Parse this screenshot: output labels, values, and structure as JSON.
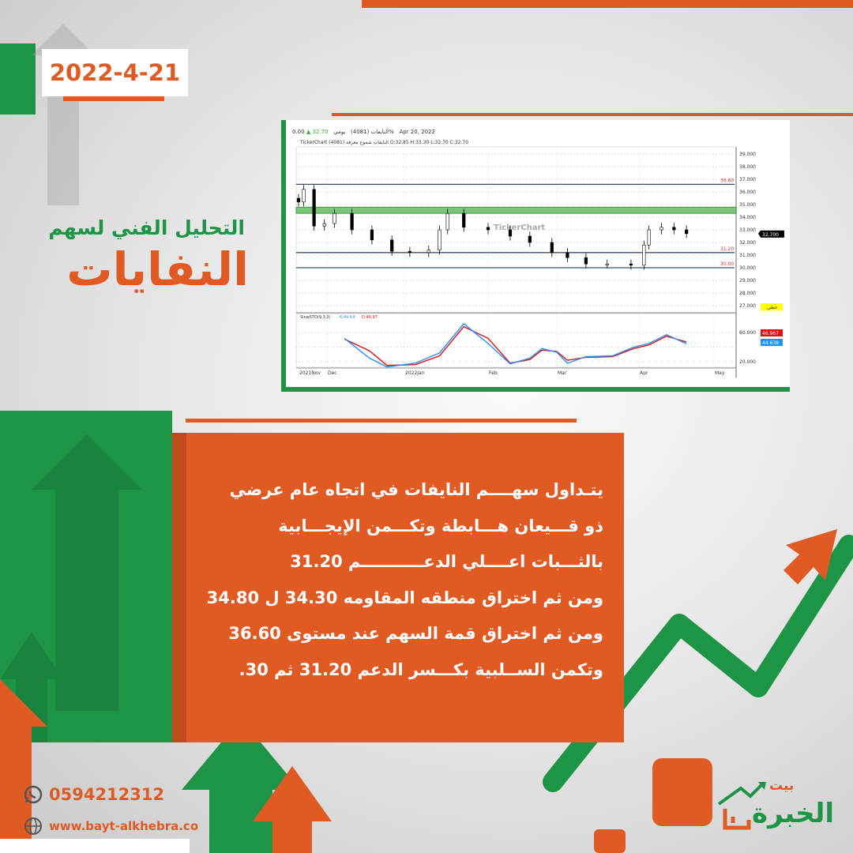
{
  "date": "2022-4-21",
  "title": {
    "small": "التحليل الفني لسهم",
    "big": "النفايات"
  },
  "chart_header": {
    "name": "النايفات (4081)",
    "market": "يومي",
    "price": "32.70",
    "change": "0.00%",
    "date": "Apr 20, 2022",
    "ohlc": "TickerChart النايفات شموع معرفة (4081) O:32.85 H:33.30 L:32.70 C:32.70",
    "watermark": "TickerChart",
    "last_price_label": "32.700",
    "yellow_label": "خطي",
    "stoch_label": "SlowSTO(9,3,3)",
    "k_label": "K:44.64",
    "d_label": "D:46.97",
    "k_value": "44.638",
    "d_value": "46.967"
  },
  "chart_data": {
    "type": "candlestick",
    "title": "",
    "y_ticks": [
      "39.000",
      "38.000",
      "37.000",
      "36.000",
      "35.000",
      "34.000",
      "33.000",
      "32.000",
      "31.000",
      "30.000",
      "29.000",
      "28.000",
      "27.000"
    ],
    "ylim": [
      27,
      39
    ],
    "x_ticks": [
      "2021Nov",
      "Dec",
      "2022Jan",
      "Feb",
      "Mar",
      "Apr",
      "May"
    ],
    "levels": [
      {
        "value": 36.6,
        "label": "36.60"
      },
      {
        "value": 31.2,
        "label": "31.20"
      },
      {
        "value": 30.0,
        "label": "30.00"
      }
    ],
    "resistance_zone": [
      34.3,
      34.8
    ],
    "color_zone": "#7cc47a",
    "closes": [
      {
        "date": "2021-11-20",
        "close": 35.2
      },
      {
        "date": "2021-11-22",
        "close": 36.2
      },
      {
        "date": "2021-11-26",
        "close": 33.3
      },
      {
        "date": "2021-11-30",
        "close": 33.5
      },
      {
        "date": "2021-12-04",
        "close": 34.3
      },
      {
        "date": "2021-12-11",
        "close": 33.0
      },
      {
        "date": "2021-12-19",
        "close": 32.2
      },
      {
        "date": "2021-12-27",
        "close": 31.3
      },
      {
        "date": "2022-01-03",
        "close": 31.2
      },
      {
        "date": "2022-01-10",
        "close": 31.4
      },
      {
        "date": "2022-01-14",
        "close": 33.0
      },
      {
        "date": "2022-01-17",
        "close": 34.3
      },
      {
        "date": "2022-01-23",
        "close": 33.2
      },
      {
        "date": "2022-02-01",
        "close": 33.0
      },
      {
        "date": "2022-02-10",
        "close": 32.5
      },
      {
        "date": "2022-02-18",
        "close": 32.0
      },
      {
        "date": "2022-02-27",
        "close": 31.2
      },
      {
        "date": "2022-03-05",
        "close": 30.8
      },
      {
        "date": "2022-03-12",
        "close": 30.3
      },
      {
        "date": "2022-03-20",
        "close": 30.3
      },
      {
        "date": "2022-03-29",
        "close": 30.2
      },
      {
        "date": "2022-04-03",
        "close": 31.8
      },
      {
        "date": "2022-04-05",
        "close": 33.0
      },
      {
        "date": "2022-04-10",
        "close": 33.2
      },
      {
        "date": "2022-04-15",
        "close": 33.0
      },
      {
        "date": "2022-04-20",
        "close": 32.7
      }
    ],
    "stoch_ticks": [
      "60.000",
      "20.000"
    ],
    "stoch": [
      {
        "date": "2021-12-08",
        "k": 52,
        "d": 51
      },
      {
        "date": "2021-12-18",
        "k": 25,
        "d": 35
      },
      {
        "date": "2021-12-25",
        "k": 13,
        "d": 15
      },
      {
        "date": "2022-01-05",
        "k": 18,
        "d": 16
      },
      {
        "date": "2022-01-14",
        "k": 32,
        "d": 28
      },
      {
        "date": "2022-01-23",
        "k": 72,
        "d": 68
      },
      {
        "date": "2022-02-01",
        "k": 45,
        "d": 52
      },
      {
        "date": "2022-02-10",
        "k": 17,
        "d": 18
      },
      {
        "date": "2022-02-18",
        "k": 25,
        "d": 23
      },
      {
        "date": "2022-02-23",
        "k": 38,
        "d": 36
      },
      {
        "date": "2022-03-01",
        "k": 33,
        "d": 34
      },
      {
        "date": "2022-03-05",
        "k": 18,
        "d": 22
      },
      {
        "date": "2022-03-12",
        "k": 27,
        "d": 26
      },
      {
        "date": "2022-03-22",
        "k": 28,
        "d": 27
      },
      {
        "date": "2022-03-30",
        "k": 40,
        "d": 38
      },
      {
        "date": "2022-04-05",
        "k": 45,
        "d": 43
      },
      {
        "date": "2022-04-12",
        "k": 57,
        "d": 55
      },
      {
        "date": "2022-04-20",
        "k": 44.64,
        "d": 46.97
      }
    ],
    "series_colors": {
      "k": "#1e90ff",
      "d": "#e01010"
    }
  },
  "analysis_lines": [
    "يتـداول سهــــم النايفات في اتجاه عام عرضي",
    "ذو قـــيعان هـــابطة وتكـــمن الإيجـــابية",
    "بالثـــبات اعــــلي الدعـــــــــــم 31.20",
    "ومن ثم اختراق منطقه المقاومه 34.30 ل 34.80",
    "ومن ثم اختراق قمة السهم عند مستوى 36.60",
    "وتكمن الســلبية بكـــسر الدعم 31.20 ثم 30."
  ],
  "contact": {
    "phone": "0594212312",
    "website": "www.bayt-alkhebra.co"
  },
  "logo": {
    "text_top": "بيت",
    "text_main": "الخبرة"
  },
  "colors": {
    "orange": "#e05a24",
    "green": "#1e9447"
  }
}
